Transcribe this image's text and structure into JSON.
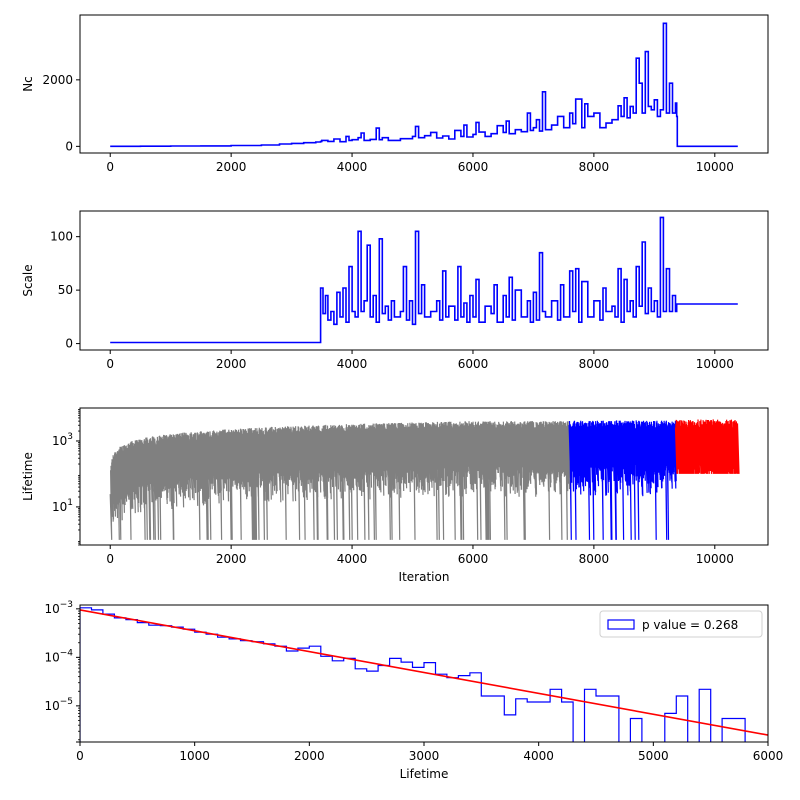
{
  "chart_data": [
    {
      "type": "line",
      "ylabel": "Nc",
      "xlabel": "",
      "xlim": [
        -500,
        10880
      ],
      "ylim": [
        -200,
        3950
      ],
      "x_ticks": [
        0,
        2000,
        4000,
        6000,
        8000,
        10000
      ],
      "x_tick_labels": [
        "0",
        "2000",
        "4000",
        "6000",
        "8000",
        "10000"
      ],
      "y_ticks": [
        0,
        2000
      ],
      "y_tick_labels": [
        "0",
        "2000"
      ],
      "series": [
        {
          "color": "#0000ff",
          "x": [
            0,
            500,
            1000,
            1500,
            2000,
            2500,
            2800,
            3000,
            3200,
            3400,
            3480,
            3500,
            3600,
            3700,
            3800,
            3900,
            3950,
            4000,
            4100,
            4150,
            4200,
            4300,
            4400,
            4450,
            4500,
            4600,
            4800,
            5000,
            5050,
            5100,
            5200,
            5300,
            5400,
            5500,
            5600,
            5700,
            5800,
            5850,
            5900,
            6000,
            6050,
            6100,
            6200,
            6300,
            6400,
            6500,
            6550,
            6600,
            6700,
            6800,
            6900,
            6950,
            7000,
            7050,
            7100,
            7150,
            7200,
            7300,
            7400,
            7500,
            7600,
            7650,
            7700,
            7800,
            7850,
            7900,
            8000,
            8100,
            8200,
            8300,
            8400,
            8450,
            8500,
            8550,
            8600,
            8650,
            8700,
            8750,
            8800,
            8850,
            8900,
            8950,
            9000,
            9050,
            9100,
            9150,
            9200,
            9250,
            9300,
            9350,
            9370,
            9380,
            10380
          ],
          "values": [
            0,
            5,
            10,
            15,
            25,
            40,
            70,
            90,
            110,
            130,
            150,
            180,
            150,
            220,
            140,
            300,
            180,
            200,
            260,
            400,
            180,
            210,
            550,
            200,
            260,
            180,
            230,
            300,
            600,
            260,
            320,
            420,
            250,
            310,
            220,
            480,
            300,
            640,
            280,
            360,
            720,
            430,
            300,
            380,
            620,
            420,
            760,
            380,
            500,
            440,
            1000,
            480,
            560,
            800,
            460,
            1640,
            500,
            640,
            900,
            560,
            1000,
            680,
            1420,
            560,
            1280,
            900,
            1000,
            560,
            700,
            800,
            1220,
            900,
            1460,
            860,
            1200,
            1000,
            2650,
            1900,
            1000,
            2850,
            1200,
            1100,
            1400,
            900,
            1100,
            3700,
            1000,
            1900,
            1000,
            1300,
            900,
            0,
            0
          ]
        }
      ]
    },
    {
      "type": "line",
      "ylabel": "Scale",
      "xlabel": "",
      "xlim": [
        -500,
        10880
      ],
      "ylim": [
        -6,
        124
      ],
      "x_ticks": [
        0,
        2000,
        4000,
        6000,
        8000,
        10000
      ],
      "x_tick_labels": [
        "0",
        "2000",
        "4000",
        "6000",
        "8000",
        "10000"
      ],
      "y_ticks": [
        0,
        50,
        100
      ],
      "y_tick_labels": [
        "0",
        "50",
        "100"
      ],
      "series": [
        {
          "color": "#0000ff",
          "x": [
            0,
            3460,
            3470,
            3480,
            3520,
            3560,
            3600,
            3650,
            3700,
            3750,
            3800,
            3850,
            3900,
            3950,
            4000,
            4050,
            4100,
            4150,
            4200,
            4250,
            4300,
            4350,
            4400,
            4450,
            4500,
            4550,
            4600,
            4650,
            4700,
            4800,
            4850,
            4900,
            4950,
            5000,
            5050,
            5100,
            5150,
            5200,
            5300,
            5400,
            5450,
            5500,
            5550,
            5600,
            5700,
            5750,
            5800,
            5850,
            5900,
            5950,
            6000,
            6050,
            6100,
            6200,
            6300,
            6350,
            6400,
            6500,
            6550,
            6600,
            6650,
            6700,
            6800,
            6900,
            6950,
            7000,
            7050,
            7100,
            7150,
            7200,
            7300,
            7400,
            7450,
            7500,
            7600,
            7650,
            7700,
            7750,
            7800,
            7900,
            8000,
            8100,
            8150,
            8200,
            8300,
            8350,
            8400,
            8450,
            8500,
            8550,
            8600,
            8650,
            8700,
            8750,
            8800,
            8850,
            8900,
            8950,
            9000,
            9050,
            9100,
            9150,
            9200,
            9250,
            9300,
            9350,
            9370,
            10380
          ],
          "values": [
            1,
            1,
            1,
            52,
            28,
            45,
            22,
            30,
            18,
            48,
            25,
            52,
            20,
            72,
            30,
            25,
            105,
            30,
            40,
            92,
            25,
            45,
            20,
            98,
            28,
            35,
            22,
            40,
            25,
            30,
            72,
            22,
            40,
            18,
            105,
            28,
            55,
            25,
            30,
            40,
            22,
            68,
            25,
            35,
            22,
            72,
            25,
            38,
            20,
            45,
            25,
            60,
            20,
            35,
            28,
            55,
            20,
            45,
            25,
            62,
            22,
            50,
            25,
            40,
            20,
            48,
            22,
            85,
            30,
            25,
            40,
            22,
            55,
            25,
            68,
            30,
            70,
            20,
            58,
            25,
            40,
            22,
            52,
            30,
            35,
            25,
            70,
            20,
            60,
            30,
            40,
            25,
            72,
            35,
            95,
            28,
            52,
            30,
            40,
            25,
            118,
            30,
            70,
            30,
            45,
            30,
            37,
            37
          ]
        }
      ]
    },
    {
      "type": "line",
      "ylabel": "Lifetime",
      "xlabel": "Iteration",
      "yscale": "log",
      "xlim": [
        -500,
        10880
      ],
      "ylim": [
        0.7,
        10000
      ],
      "x_ticks": [
        0,
        2000,
        4000,
        6000,
        8000,
        10000
      ],
      "x_tick_labels": [
        "0",
        "2000",
        "4000",
        "6000",
        "8000",
        "10000"
      ],
      "y_ticks": [
        10,
        1000
      ],
      "y_tick_labels": [
        "10^1",
        "10^3"
      ],
      "series": [
        {
          "color": "#808080",
          "x": [
            0,
            7590
          ],
          "envelope_low": 1,
          "envelope_high": 4000
        },
        {
          "color": "#0000ff",
          "x": [
            7590,
            9350
          ],
          "envelope_low": 1,
          "envelope_high": 4200
        },
        {
          "color": "#ff0000",
          "x": [
            9350,
            10380
          ],
          "envelope_low": 100,
          "envelope_high": 4500
        }
      ]
    },
    {
      "type": "histogram",
      "xlabel": "Lifetime",
      "ylabel": "",
      "yscale": "log",
      "xlim": [
        0,
        6000
      ],
      "ylim": [
        1.8e-06,
        0.0012
      ],
      "x_ticks": [
        0,
        1000,
        2000,
        3000,
        4000,
        5000,
        6000
      ],
      "x_tick_labels": [
        "0",
        "1000",
        "2000",
        "3000",
        "4000",
        "5000",
        "6000"
      ],
      "y_ticks": [
        1e-06,
        1e-05,
        0.0001,
        0.001
      ],
      "y_tick_labels": [
        "",
        "10^-5",
        "10^-4",
        "10^-3"
      ],
      "legend": {
        "label": "p value = 0.268",
        "location": "upper right"
      },
      "histogram": {
        "color": "#0000ff",
        "bin_width": 100,
        "bin_start": 0,
        "values": [
          0.00105,
          0.00095,
          0.00078,
          0.00065,
          0.0006,
          0.00052,
          0.00046,
          0.00045,
          0.00042,
          0.00038,
          0.00033,
          0.0003,
          0.00026,
          0.00024,
          0.00022,
          0.00021,
          0.00019,
          0.00017,
          0.000135,
          0.000155,
          0.00017,
          0.000105,
          8.5e-05,
          9.5e-05,
          5.8e-05,
          5.2e-05,
          6.8e-05,
          9.5e-05,
          8e-05,
          6.2e-05,
          7.8e-05,
          4.5e-05,
          3.8e-05,
          4.2e-05,
          4.8e-05,
          1.6e-05,
          1.6e-05,
          6.5e-06,
          1.4e-05,
          1.2e-05,
          1.2e-05,
          2.2e-05,
          1.2e-05,
          0.0,
          2.2e-05,
          1.6e-05,
          1.6e-05,
          0.0,
          5.5e-06,
          0.0,
          0.0,
          7e-06,
          1.6e-05,
          0.0,
          2.2e-05,
          0.0,
          5.5e-06,
          5.5e-06,
          0.0
        ]
      },
      "fit": {
        "color": "#ff0000",
        "x": [
          0,
          6000
        ],
        "values": [
          0.00095,
          2.5e-06
        ]
      }
    }
  ]
}
